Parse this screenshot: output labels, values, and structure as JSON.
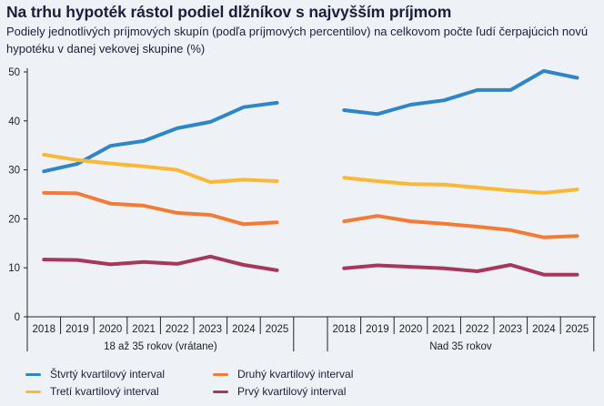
{
  "header": {
    "title": "Na trhu hypoték rástol podiel dlžníkov s najvyšším príjmom",
    "subtitle": "Podiely jednotlivých príjmových skupín (podľa príjmových percentilov) na celkovom počte ľudí čerpajúcich novú hypotéku v danej vekovej skupine (%)"
  },
  "chart_data": {
    "type": "line",
    "title": "Na trhu hypoték rástol podiel dlžníkov s najvyšším príjmom",
    "subtitle": "Podiely jednotlivých príjmových skupín (podľa príjmových percentilov) na celkovom počte ľudí čerpajúcich novú hypotéku v danej vekovej skupine (%)",
    "xlabel": "",
    "ylabel": "%",
    "ylim": [
      0,
      50
    ],
    "yticks": [
      0,
      10,
      20,
      30,
      40,
      50
    ],
    "grid": false,
    "legend_position": "bottom",
    "categories": [
      "2018",
      "2019",
      "2020",
      "2021",
      "2022",
      "2023",
      "2024",
      "2025"
    ],
    "groups": [
      {
        "name": "18 až 35 rokov (vrátane)",
        "series": [
          {
            "name": "Štvrtý kvartilový interval",
            "color": "#2e86c8",
            "values": [
              29.7,
              31.2,
              34.9,
              35.9,
              38.5,
              39.8,
              42.8,
              43.7
            ]
          },
          {
            "name": "Tretí kvartilový interval",
            "color": "#fbb836",
            "values": [
              33.1,
              32.0,
              31.3,
              30.7,
              30.0,
              27.5,
              28.0,
              27.7
            ]
          },
          {
            "name": "Druhý kvartilový interval",
            "color": "#f47b35",
            "values": [
              25.3,
              25.2,
              23.1,
              22.7,
              21.2,
              20.8,
              18.9,
              19.3
            ]
          },
          {
            "name": "Prvý kvartilový interval",
            "color": "#a6385a",
            "values": [
              11.7,
              11.6,
              10.7,
              11.2,
              10.8,
              12.3,
              10.6,
              9.5
            ]
          }
        ]
      },
      {
        "name": "Nad 35 rokov",
        "series": [
          {
            "name": "Štvrtý kvartilový interval",
            "color": "#2e86c8",
            "values": [
              42.2,
              41.4,
              43.3,
              44.2,
              46.3,
              46.3,
              50.2,
              48.8
            ]
          },
          {
            "name": "Tretí kvartilový interval",
            "color": "#fbb836",
            "values": [
              28.4,
              27.7,
              27.1,
              27.0,
              26.4,
              25.8,
              25.3,
              26.0
            ]
          },
          {
            "name": "Druhý kvartilový interval",
            "color": "#f47b35",
            "values": [
              19.5,
              20.6,
              19.5,
              19.0,
              18.4,
              17.7,
              16.2,
              16.5
            ]
          },
          {
            "name": "Prvý kvartilový interval",
            "color": "#a6385a",
            "values": [
              9.9,
              10.5,
              10.2,
              9.9,
              9.3,
              10.6,
              8.6,
              8.6
            ]
          }
        ]
      }
    ],
    "legend": [
      {
        "label": "Štvrtý kvartilový interval",
        "color": "#2e86c8"
      },
      {
        "label": "Druhý kvartilový interval",
        "color": "#f47b35"
      },
      {
        "label": "Tretí kvartilový interval",
        "color": "#fbb836"
      },
      {
        "label": "Prvý kvartilový interval",
        "color": "#a6385a"
      }
    ]
  }
}
